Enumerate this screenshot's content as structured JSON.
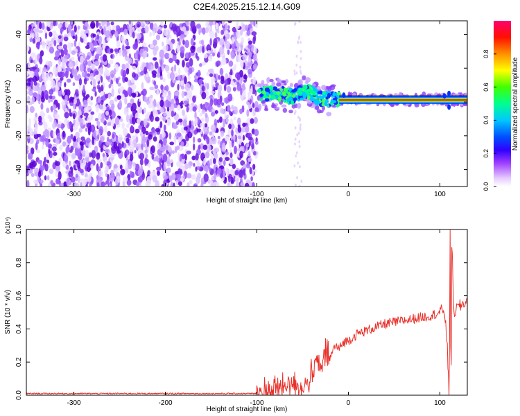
{
  "figure": {
    "title": "C2E4.2025.215.12.14.G09",
    "colors": {
      "snr_line": "#e8302a",
      "background": "#ffffff",
      "frame": "#000000"
    }
  },
  "chart_data": [
    {
      "type": "heatmap",
      "title": "C2E4.2025.215.12.14.G09",
      "xlabel": "Height of straight line (km)",
      "ylabel": "Frequency (Hz)",
      "xlim": [
        -352,
        130
      ],
      "ylim": [
        -50,
        48
      ],
      "x_ticks": [
        -300,
        -200,
        -100,
        0,
        100
      ],
      "y_ticks": [
        -40,
        -20,
        0,
        20,
        40
      ],
      "colorbar": {
        "label": "Normalized spectral amplitude",
        "range": [
          0,
          1
        ],
        "ticks": [
          "0.0",
          "0.2",
          "0.4",
          "0.6",
          "0.8"
        ],
        "tick_values": [
          0.0,
          0.2,
          0.4,
          0.6,
          0.8
        ],
        "colormap": [
          "#ffffff",
          "#e6ccff",
          "#7a00e6",
          "#0000ff",
          "#00c8ff",
          "#00ff80",
          "#ffff00",
          "#ff8000",
          "#ff0000",
          "#ff0080"
        ]
      },
      "regions": [
        {
          "name": "noise",
          "x_range": [
            -352,
            -100
          ],
          "freq_range": [
            -50,
            48
          ]
        },
        {
          "name": "signal",
          "x_range": [
            -100,
            130
          ],
          "center_freq": [
            [
              -100,
              4
            ],
            [
              -80,
              5
            ],
            [
              -60,
              3
            ],
            [
              -45,
              7
            ],
            [
              -35,
              3
            ],
            [
              -20,
              1
            ],
            [
              0,
              2
            ],
            [
              20,
              1
            ],
            [
              60,
              1.5
            ],
            [
              100,
              1.5
            ],
            [
              130,
              1.5
            ]
          ]
        }
      ]
    },
    {
      "type": "line",
      "xlabel": "Height of straight line (km)",
      "ylabel": "SNR (10 * v/v)",
      "yscale_label": "(x10⁴)",
      "xlim": [
        -352,
        130
      ],
      "ylim": [
        0.0,
        1.0
      ],
      "x_ticks": [
        -300,
        -200,
        -100,
        0,
        100
      ],
      "y_ticks": [
        0.0,
        0.2,
        0.4,
        0.6,
        0.8,
        1.0
      ],
      "y_tick_labels": [
        "0.0",
        "0.2",
        "0.4",
        "0.6",
        "0.8",
        "1.0"
      ],
      "series": [
        {
          "color": "#e8302a",
          "x": [
            -352,
            -300,
            -250,
            -200,
            -150,
            -100,
            -90,
            -80,
            -70,
            -60,
            -55,
            -50,
            -45,
            -40,
            -35,
            -30,
            -25,
            -20,
            -15,
            -10,
            -5,
            0,
            5,
            10,
            15,
            20,
            30,
            40,
            50,
            60,
            70,
            80,
            90,
            100,
            105,
            108,
            110,
            111,
            112,
            113,
            115,
            120,
            125,
            130
          ],
          "y": [
            0.01,
            0.01,
            0.01,
            0.01,
            0.01,
            0.01,
            0.02,
            0.03,
            0.05,
            0.08,
            0.06,
            0.04,
            0.07,
            0.12,
            0.2,
            0.15,
            0.25,
            0.22,
            0.3,
            0.28,
            0.32,
            0.33,
            0.35,
            0.37,
            0.38,
            0.39,
            0.41,
            0.43,
            0.44,
            0.45,
            0.46,
            0.47,
            0.48,
            0.5,
            0.52,
            0.3,
            0.02,
            1.0,
            0.05,
            0.95,
            0.5,
            0.53,
            0.55,
            0.57
          ]
        }
      ]
    }
  ]
}
